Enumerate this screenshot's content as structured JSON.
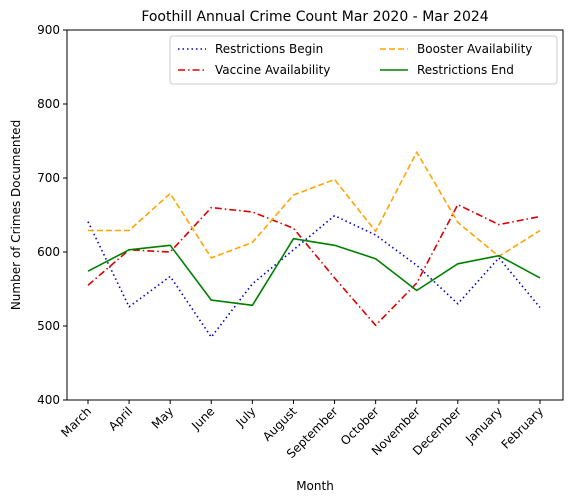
{
  "chart_data": {
    "type": "line",
    "title": "Foothill Annual Crime Count Mar 2020 - Mar 2024",
    "xlabel": "Month",
    "ylabel": "Number of Crimes Documented",
    "categories": [
      "March",
      "April",
      "May",
      "June",
      "July",
      "August",
      "September",
      "October",
      "November",
      "December",
      "January",
      "February"
    ],
    "ylim": [
      400,
      900
    ],
    "yticks": [
      400,
      500,
      600,
      700,
      800,
      900
    ],
    "grid": false,
    "legend_position": "top-right",
    "legend_columns": 2,
    "series": [
      {
        "name": "Restrictions Begin",
        "color": "#0000cc",
        "style": "dotted",
        "values": [
          641,
          526,
          567,
          485,
          557,
          603,
          649,
          623,
          582,
          530,
          592,
          525
        ]
      },
      {
        "name": "Vaccine Availability",
        "color": "#dd0000",
        "style": "dashdot",
        "values": [
          555,
          603,
          600,
          660,
          654,
          632,
          565,
          501,
          558,
          664,
          637,
          648
        ]
      },
      {
        "name": "Booster Availability",
        "color": "#ffa500",
        "style": "dashed",
        "values": [
          629,
          629,
          679,
          592,
          613,
          677,
          698,
          628,
          735,
          640,
          594,
          629
        ]
      },
      {
        "name": "Restrictions End",
        "color": "#008000",
        "style": "solid",
        "values": [
          574,
          603,
          609,
          535,
          528,
          618,
          609,
          591,
          548,
          584,
          595,
          565
        ]
      }
    ]
  }
}
